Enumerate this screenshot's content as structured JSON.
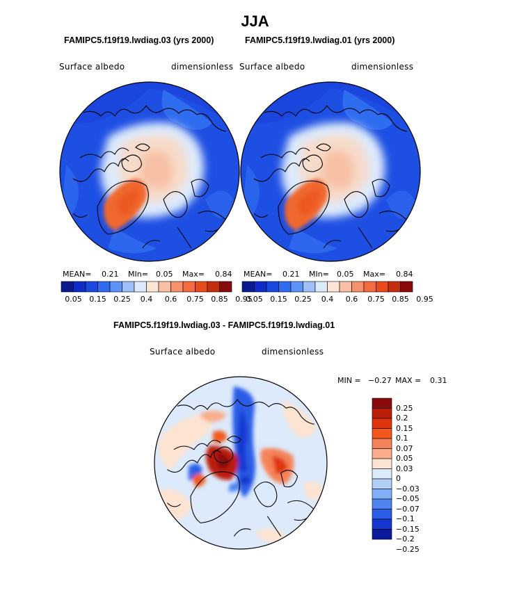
{
  "season": "JJA",
  "panels": [
    {
      "case": "FAMIPC5.f19f19.lwdiag.03 (yrs 2000)",
      "variable": "Surface albedo",
      "units": "dimensionless",
      "stats": {
        "mean_label": "MEAN=",
        "mean": "0.21",
        "min_label": "MIn=",
        "min": "0.05",
        "max_label": "Max=",
        "max": "0.84"
      }
    },
    {
      "case": "FAMIPC5.f19f19.lwdiag.01 (yrs 2000)",
      "variable": "Surface albedo",
      "units": "dimensionless",
      "stats": {
        "mean_label": "MEAN=",
        "mean": "0.21",
        "min_label": "MIn=",
        "min": "0.05",
        "max_label": "Max=",
        "max": "0.84"
      }
    }
  ],
  "diff_panel": {
    "title": "FAMIPC5.f19f19.lwdiag.03 - FAMIPC5.f19f19.lwdiag.01",
    "variable": "Surface albedo",
    "units": "dimensionless",
    "min_label": "MIN =",
    "min": "−0.27",
    "max_label": "MAX =",
    "max": "0.31"
  },
  "albedo_colorbar": {
    "colors": [
      "#0b1b8f",
      "#0d2cc8",
      "#1a49df",
      "#2f6cf0",
      "#5b93f7",
      "#9ebff8",
      "#dcebfb",
      "#fde6d6",
      "#f9c0a6",
      "#f5916c",
      "#f36b3f",
      "#e84a1c",
      "#c42d0e",
      "#8a0b0b"
    ],
    "tick_labels": [
      "0.05",
      "0.15",
      "0.25",
      "0.4",
      "0.6",
      "0.75",
      "0.85",
      "0.95"
    ]
  },
  "diff_colorbar": {
    "colors": [
      "#8a0b0b",
      "#bb1d07",
      "#e0350c",
      "#f4581f",
      "#f58359",
      "#f9ad8b",
      "#fde3d1",
      "#dceafb",
      "#b2cff8",
      "#82aef5",
      "#4f84f0",
      "#2c5de6",
      "#1637cf",
      "#0a1a9a"
    ],
    "tick_labels": [
      "0.25",
      "0.2",
      "0.15",
      "0.1",
      "0.07",
      "0.05",
      "0.03",
      "0",
      "−0.03",
      "−0.05",
      "−0.07",
      "−0.1",
      "−0.15",
      "−0.2",
      "−0.25"
    ]
  }
}
